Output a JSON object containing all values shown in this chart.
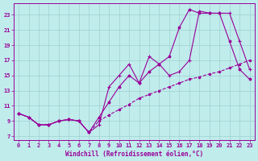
{
  "xlabel": "Windchill (Refroidissement éolien,°C)",
  "background_color": "#c0ecec",
  "grid_color": "#a0d0d0",
  "line_color": "#990099",
  "xlim": [
    -0.5,
    23.5
  ],
  "ylim": [
    6.5,
    24.5
  ],
  "xticks": [
    0,
    1,
    2,
    3,
    4,
    5,
    6,
    7,
    8,
    9,
    10,
    11,
    12,
    13,
    14,
    15,
    16,
    17,
    18,
    19,
    20,
    21,
    22,
    23
  ],
  "yticks": [
    7,
    9,
    11,
    13,
    15,
    17,
    19,
    21,
    23
  ],
  "line1_x": [
    0,
    1,
    2,
    3,
    4,
    5,
    6,
    7,
    8,
    9,
    10,
    11,
    12,
    13,
    14,
    15,
    16,
    17,
    18,
    19,
    20,
    21,
    22,
    23
  ],
  "line1_y": [
    10.0,
    9.5,
    8.5,
    8.5,
    9.0,
    9.2,
    9.0,
    7.5,
    8.5,
    13.5,
    15.0,
    16.5,
    14.0,
    17.5,
    16.5,
    15.0,
    15.5,
    17.0,
    23.5,
    23.2,
    23.2,
    23.2,
    19.5,
    15.8
  ],
  "line2_x": [
    0,
    1,
    2,
    3,
    4,
    5,
    6,
    7,
    8,
    9,
    10,
    11,
    12,
    13,
    14,
    15,
    16,
    17,
    18,
    19,
    20,
    21,
    22,
    23
  ],
  "line2_y": [
    10.0,
    9.5,
    8.5,
    8.5,
    9.0,
    9.2,
    9.0,
    7.5,
    9.5,
    11.5,
    13.5,
    15.0,
    14.0,
    15.5,
    16.5,
    17.5,
    21.3,
    23.7,
    23.2,
    23.2,
    23.2,
    19.5,
    15.8,
    14.5
  ],
  "line3_x": [
    0,
    1,
    2,
    3,
    4,
    5,
    6,
    7,
    8,
    9,
    10,
    11,
    12,
    13,
    14,
    15,
    16,
    17,
    18,
    19,
    20,
    21,
    22,
    23
  ],
  "line3_y": [
    10.0,
    9.5,
    8.5,
    8.5,
    9.0,
    9.2,
    9.0,
    7.5,
    9.0,
    9.8,
    10.5,
    11.2,
    12.0,
    12.5,
    13.0,
    13.5,
    14.0,
    14.5,
    14.8,
    15.2,
    15.5,
    16.0,
    16.5,
    17.0
  ],
  "xlabel_fontsize": 5.5,
  "tick_fontsize": 5.0,
  "figwidth": 3.2,
  "figheight": 2.0,
  "dpi": 100
}
